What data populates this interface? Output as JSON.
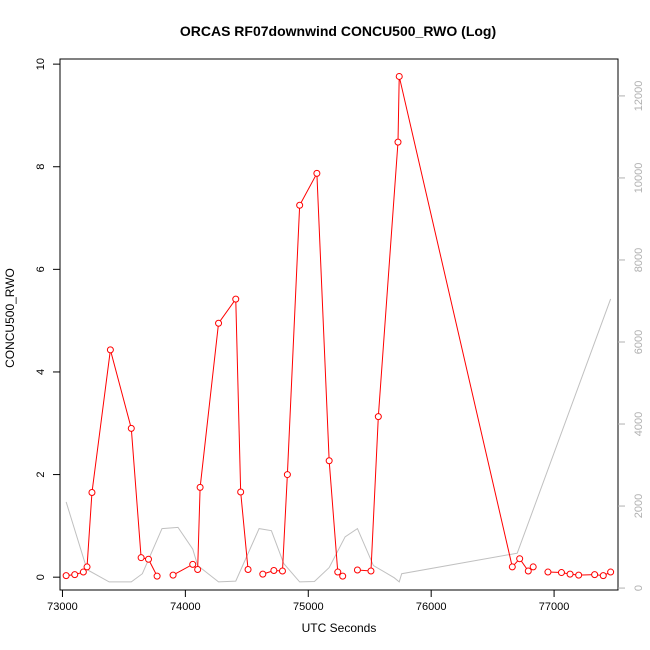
{
  "chart_data": {
    "type": "line",
    "title": "ORCAS RF07downwind CONCU500_RWO (Log)",
    "xlabel": "UTC Seconds",
    "ylabel": "CONCU500_RWO",
    "xlim": [
      72980,
      77520
    ],
    "ylim": [
      -0.25,
      10.1
    ],
    "y2lim": [
      -47,
      12900
    ],
    "x_ticks": [
      73000,
      74000,
      75000,
      76000,
      77000
    ],
    "y_ticks": [
      0,
      2,
      4,
      6,
      8,
      10
    ],
    "y2_ticks": [
      0,
      2000,
      4000,
      6000,
      8000,
      10000,
      12000
    ],
    "grid": false,
    "colors": {
      "primary": "#ff0000",
      "secondary": "#c0c0c0"
    },
    "series": [
      {
        "axis": "left",
        "color": "#ff0000",
        "marker": "open-circle",
        "segments": [
          [
            [
              73030,
              0.03
            ],
            [
              73100,
              0.05
            ],
            [
              73170,
              0.1
            ],
            [
              73200,
              0.2
            ],
            [
              73240,
              1.65
            ],
            [
              73390,
              4.43
            ],
            [
              73560,
              2.9
            ],
            [
              73640,
              0.38
            ],
            [
              73700,
              0.35
            ],
            [
              73770,
              0.02
            ]
          ],
          [
            [
              73900,
              0.04
            ],
            [
              74060,
              0.25
            ],
            [
              74100,
              0.15
            ],
            [
              74120,
              1.75
            ],
            [
              74270,
              4.95
            ],
            [
              74410,
              5.42
            ],
            [
              74450,
              1.66
            ],
            [
              74510,
              0.15
            ]
          ],
          [
            [
              74630,
              0.06
            ],
            [
              74720,
              0.13
            ],
            [
              74790,
              0.12
            ],
            [
              74830,
              2.0
            ],
            [
              74930,
              7.25
            ],
            [
              75070,
              7.87
            ],
            [
              75170,
              2.27
            ],
            [
              75240,
              0.1
            ],
            [
              75280,
              0.02
            ]
          ],
          [
            [
              75400,
              0.14
            ],
            [
              75510,
              0.12
            ],
            [
              75570,
              3.13
            ],
            [
              75730,
              8.48
            ],
            [
              75740,
              9.76
            ],
            [
              76660,
              0.2
            ],
            [
              76720,
              0.36
            ],
            [
              76790,
              0.12
            ],
            [
              76830,
              0.2
            ]
          ],
          [
            [
              76950,
              0.1
            ],
            [
              77060,
              0.09
            ],
            [
              77130,
              0.06
            ],
            [
              77200,
              0.04
            ],
            [
              77330,
              0.05
            ],
            [
              77400,
              0.03
            ],
            [
              77460,
              0.1
            ]
          ]
        ]
      },
      {
        "axis": "right",
        "color": "#c0c0c0",
        "values": [
          [
            73030,
            2100
          ],
          [
            73200,
            450
          ],
          [
            73380,
            150
          ],
          [
            73560,
            150
          ],
          [
            73650,
            350
          ],
          [
            73810,
            1450
          ],
          [
            73940,
            1480
          ],
          [
            74060,
            950
          ],
          [
            74100,
            550
          ],
          [
            74270,
            150
          ],
          [
            74410,
            170
          ],
          [
            74600,
            1450
          ],
          [
            74700,
            1400
          ],
          [
            74800,
            600
          ],
          [
            74930,
            150
          ],
          [
            75050,
            160
          ],
          [
            75170,
            500
          ],
          [
            75300,
            1250
          ],
          [
            75400,
            1450
          ],
          [
            75530,
            550
          ],
          [
            75700,
            250
          ],
          [
            75740,
            150
          ],
          [
            75760,
            350
          ],
          [
            76700,
            850
          ],
          [
            77460,
            7050
          ]
        ]
      }
    ]
  }
}
